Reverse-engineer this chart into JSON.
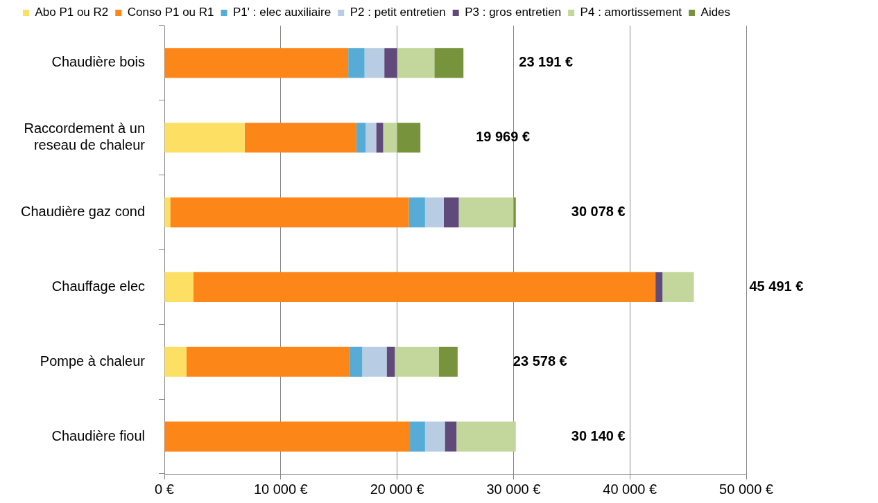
{
  "chart_data": {
    "type": "bar",
    "orientation": "horizontal",
    "stacked": true,
    "legend": "top",
    "grid": "x",
    "categories": [
      "Chaudière bois",
      "Raccordement à un reseau de chaleur",
      "Chaudière gaz cond",
      "Chauffage elec",
      "Pompe à chaleur",
      "Chaudière fioul"
    ],
    "series": [
      {
        "name": "Abo P1 ou R2",
        "color": "#fddf64",
        "values": [
          0,
          6900,
          500,
          2500,
          1900,
          0
        ]
      },
      {
        "name": "Conso P1 ou R1",
        "color": "#fd8619",
        "values": [
          15800,
          9600,
          20500,
          39700,
          14000,
          21100
        ]
      },
      {
        "name": "P1' : elec auxiliaire",
        "color": "#56acd6",
        "values": [
          1400,
          800,
          1400,
          0,
          1100,
          1300
        ]
      },
      {
        "name": "P2 : petit entretien",
        "color": "#b8cce4",
        "values": [
          1700,
          900,
          1600,
          0,
          2100,
          1700
        ]
      },
      {
        "name": "P3 : gros entretien",
        "color": "#604a7b",
        "values": [
          1100,
          600,
          1300,
          600,
          700,
          1000
        ]
      },
      {
        "name": "P4 : amortissement",
        "color": "#c3d69b",
        "values": [
          3200,
          1200,
          4700,
          2700,
          3800,
          5100
        ]
      },
      {
        "name": "Aides",
        "color": "#77933c",
        "values": [
          2500,
          2000,
          200,
          0,
          1600,
          0
        ]
      }
    ],
    "xlim": [
      0,
      50000
    ],
    "xticks": [
      {
        "value": 0,
        "label": "0 €"
      },
      {
        "value": 10000,
        "label": "10 000 €"
      },
      {
        "value": 20000,
        "label": "20 000 €"
      },
      {
        "value": 30000,
        "label": "30 000 €"
      },
      {
        "value": 40000,
        "label": "40 000 €"
      },
      {
        "value": 50000,
        "label": "50 000 €"
      }
    ],
    "annotations": [
      "23 191 €",
      "19 969 €",
      "30 078 €",
      "45 491 €",
      "23 578 €",
      "30 140 €"
    ]
  }
}
